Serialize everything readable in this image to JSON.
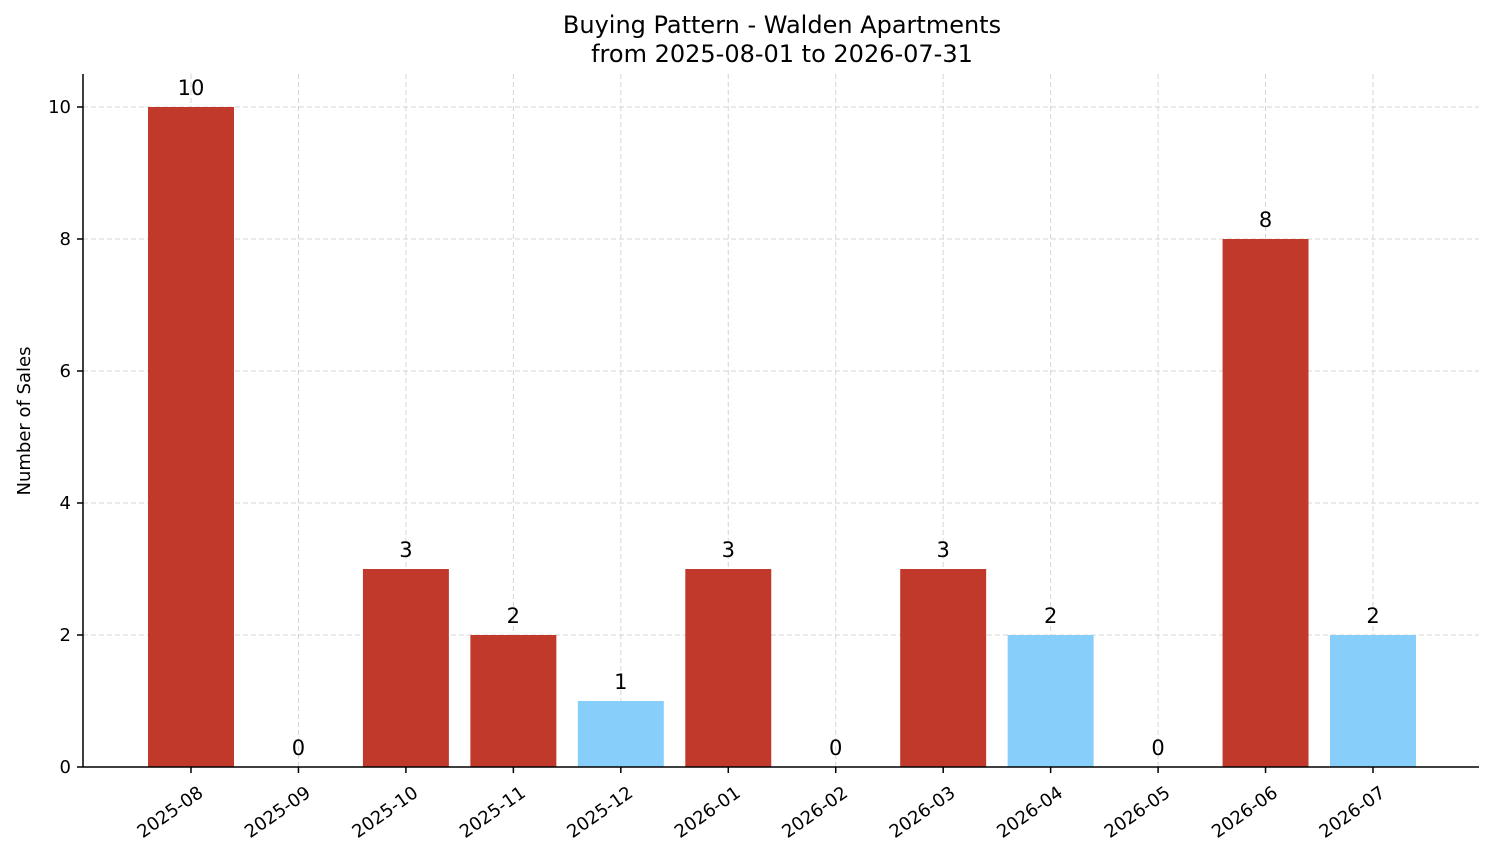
{
  "chart_data": {
    "type": "bar",
    "title": "Buying Pattern - Walden Apartments",
    "subtitle": "from 2025-08-01 to 2026-07-31",
    "xlabel": "",
    "ylabel": "Number of Sales",
    "ylim": [
      0,
      10.5
    ],
    "yticks": [
      0,
      2,
      4,
      6,
      8,
      10
    ],
    "grid": true,
    "categories": [
      "2025-08",
      "2025-09",
      "2025-10",
      "2025-11",
      "2025-12",
      "2026-01",
      "2026-02",
      "2026-03",
      "2026-04",
      "2026-05",
      "2026-06",
      "2026-07"
    ],
    "values": [
      10,
      0,
      3,
      2,
      1,
      3,
      0,
      3,
      2,
      0,
      8,
      2
    ],
    "bar_colors": [
      "#c0392b",
      "#c0392b",
      "#c0392b",
      "#c0392b",
      "#87cefa",
      "#c0392b",
      "#c0392b",
      "#c0392b",
      "#87cefa",
      "#c0392b",
      "#c0392b",
      "#87cefa"
    ]
  }
}
